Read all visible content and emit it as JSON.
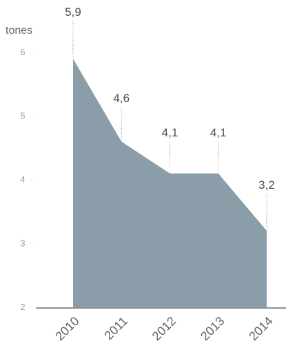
{
  "chart_data": {
    "type": "area",
    "ylabel": "tones",
    "categories": [
      "2010",
      "2011",
      "2012",
      "2013",
      "2014"
    ],
    "values": [
      5.9,
      4.6,
      4.1,
      4.1,
      3.2
    ],
    "value_labels": [
      "5,9",
      "4,6",
      "4,1",
      "4,1",
      "3,2"
    ],
    "ylim": [
      2,
      6
    ],
    "yticks": [
      2,
      3,
      4,
      5,
      6
    ],
    "ytick_labels": [
      "2",
      "3",
      "4",
      "5",
      "6"
    ],
    "grid": false,
    "colors": {
      "area": "#8b9da8",
      "baseline": "#8c9095",
      "leader": "#808487"
    }
  }
}
